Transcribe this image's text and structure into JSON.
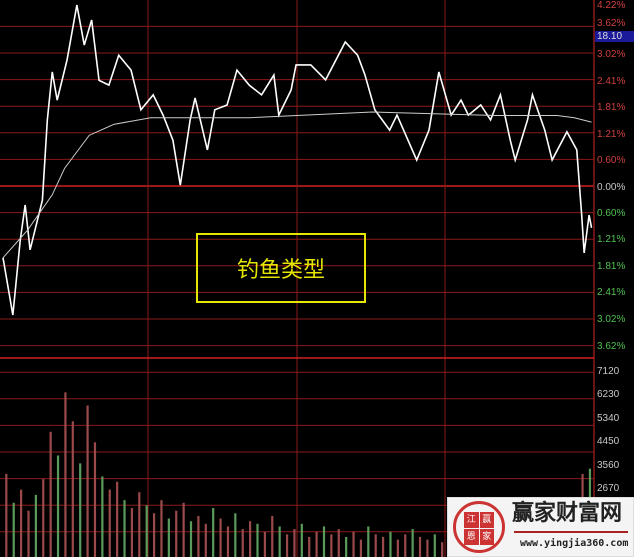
{
  "chart_data": {
    "type": "line",
    "title": "",
    "current_price": "18.10",
    "annotation": "钓鱼类型",
    "pct_ticks_upper": [
      "4.22%",
      "3.62%",
      "3.02%",
      "2.41%",
      "1.81%",
      "1.21%",
      "0.60%",
      "0.00%"
    ],
    "pct_ticks_lower": [
      "0.60%",
      "1.21%",
      "1.81%",
      "2.41%",
      "3.02%",
      "3.62%"
    ],
    "pct_range": [
      -3.62,
      4.22
    ],
    "volume_ticks": [
      "7120",
      "6230",
      "5340",
      "4450",
      "3560",
      "2670"
    ],
    "x_range_minutes": [
      0,
      240
    ],
    "series": [
      {
        "role": "price",
        "color": "#ffffff",
        "points": [
          [
            0,
            -1.63
          ],
          [
            4,
            -2.93
          ],
          [
            7,
            -1.23
          ],
          [
            9,
            -0.43
          ],
          [
            11,
            -1.45
          ],
          [
            16,
            -0.32
          ],
          [
            18,
            1.5
          ],
          [
            20,
            2.59
          ],
          [
            22,
            1.95
          ],
          [
            26,
            2.86
          ],
          [
            30,
            4.11
          ],
          [
            33,
            3.2
          ],
          [
            36,
            3.77
          ],
          [
            39,
            2.4
          ],
          [
            43,
            2.29
          ],
          [
            47,
            2.97
          ],
          [
            52,
            2.63
          ],
          [
            56,
            1.73
          ],
          [
            61,
            2.07
          ],
          [
            65,
            1.61
          ],
          [
            69,
            1.04
          ],
          [
            72,
            0.02
          ],
          [
            76,
            1.5
          ],
          [
            78,
            2.0
          ],
          [
            83,
            0.82
          ],
          [
            86,
            1.73
          ],
          [
            91,
            1.84
          ],
          [
            95,
            2.63
          ],
          [
            100,
            2.29
          ],
          [
            105,
            2.07
          ],
          [
            110,
            2.52
          ],
          [
            112,
            1.61
          ],
          [
            117,
            2.18
          ],
          [
            119,
            2.75
          ],
          [
            125,
            2.75
          ],
          [
            131,
            2.41
          ],
          [
            139,
            3.27
          ],
          [
            144,
            2.97
          ],
          [
            147,
            2.52
          ],
          [
            151,
            1.73
          ],
          [
            157,
            1.27
          ],
          [
            160,
            1.61
          ],
          [
            168,
            0.59
          ],
          [
            173,
            1.27
          ],
          [
            177,
            2.59
          ],
          [
            182,
            1.61
          ],
          [
            186,
            1.95
          ],
          [
            189,
            1.61
          ],
          [
            194,
            1.84
          ],
          [
            198,
            1.5
          ],
          [
            202,
            2.07
          ],
          [
            206,
            1.04
          ],
          [
            208,
            0.59
          ],
          [
            213,
            1.5
          ],
          [
            215,
            2.07
          ],
          [
            220,
            1.27
          ],
          [
            223,
            0.59
          ],
          [
            229,
            1.23
          ],
          [
            233,
            0.82
          ],
          [
            235,
            -0.66
          ],
          [
            236,
            -1.52
          ],
          [
            238,
            -0.66
          ],
          [
            239,
            -0.95
          ]
        ]
      },
      {
        "role": "average",
        "color": "#cccccc",
        "points": [
          [
            0,
            -1.63
          ],
          [
            10,
            -1.0
          ],
          [
            20,
            -0.2
          ],
          [
            25,
            0.4
          ],
          [
            35,
            1.15
          ],
          [
            45,
            1.4
          ],
          [
            60,
            1.55
          ],
          [
            100,
            1.55
          ],
          [
            150,
            1.68
          ],
          [
            200,
            1.6
          ],
          [
            225,
            1.6
          ],
          [
            232,
            1.55
          ],
          [
            239,
            1.45
          ]
        ]
      }
    ],
    "volume": [
      3200,
      2100,
      2600,
      1800,
      2400,
      3000,
      4800,
      3900,
      6300,
      5200,
      3600,
      5800,
      4400,
      3100,
      2600,
      2900,
      2200,
      1900,
      2500,
      2000,
      1700,
      2200,
      1500,
      1800,
      2100,
      1400,
      1600,
      1300,
      1900,
      1500,
      1200,
      1700,
      1100,
      1400,
      1300,
      1000,
      1600,
      1200,
      900,
      1100,
      1300,
      800,
      1000,
      1200,
      900,
      1100,
      800,
      1000,
      700,
      1200,
      900,
      800,
      1000,
      700,
      900,
      1100,
      800,
      700,
      900,
      600,
      800,
      1000,
      700,
      900,
      800,
      600,
      1500,
      900,
      1200,
      2000,
      1800,
      700,
      800,
      900,
      1000,
      800,
      1100,
      900,
      3200,
      3400
    ],
    "colors": {
      "grid": "#8b1a1a",
      "zero_line": "#d02020",
      "up_label": "#d04040",
      "down_label": "#50c050",
      "vol_label": "#c8c8c8",
      "annotation": "#e6e600"
    }
  },
  "watermark": {
    "title": "赢家财富网",
    "url": "www.yingjia360.com",
    "seal": [
      "江",
      "赢",
      "恩",
      "家"
    ]
  }
}
